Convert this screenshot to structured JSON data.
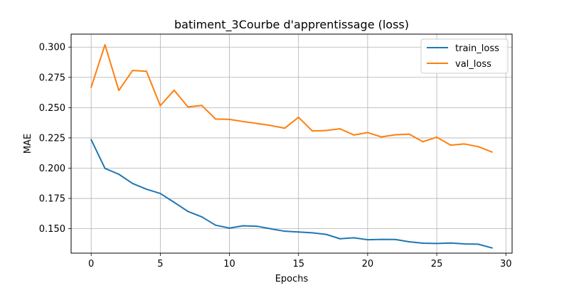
{
  "chart_data": {
    "type": "line",
    "title": "batiment_3Courbe d'apprentissage (loss)",
    "xlabel": "Epochs",
    "ylabel": "MAE",
    "xlim": [
      -1.45,
      30.45
    ],
    "ylim": [
      0.1298,
      0.3107
    ],
    "xticks": [
      0,
      5,
      10,
      15,
      20,
      25,
      30
    ],
    "xtick_labels": [
      "0",
      "5",
      "10",
      "15",
      "20",
      "25",
      "30"
    ],
    "yticks": [
      0.15,
      0.175,
      0.2,
      0.225,
      0.25,
      0.275,
      0.3
    ],
    "ytick_labels": [
      "0.150",
      "0.175",
      "0.200",
      "0.225",
      "0.250",
      "0.275",
      "0.300"
    ],
    "grid": true,
    "legend_position": "top-right",
    "x": [
      0,
      1,
      2,
      3,
      4,
      5,
      6,
      7,
      8,
      9,
      10,
      11,
      12,
      13,
      14,
      15,
      16,
      17,
      18,
      19,
      20,
      21,
      22,
      23,
      24,
      25,
      26,
      27,
      28,
      29
    ],
    "series": [
      {
        "name": "train_loss",
        "color": "#1f77b4",
        "values": [
          0.2235,
          0.1998,
          0.195,
          0.1873,
          0.1826,
          0.1791,
          0.1718,
          0.1643,
          0.1598,
          0.1529,
          0.1505,
          0.1524,
          0.152,
          0.1499,
          0.1479,
          0.1473,
          0.1466,
          0.1453,
          0.1417,
          0.1425,
          0.1409,
          0.1412,
          0.1411,
          0.1392,
          0.138,
          0.1378,
          0.1382,
          0.1374,
          0.1372,
          0.1341
        ]
      },
      {
        "name": "val_loss",
        "color": "#ff7f0e",
        "values": [
          0.2668,
          0.3019,
          0.2642,
          0.2807,
          0.28,
          0.2516,
          0.2644,
          0.2506,
          0.2518,
          0.2406,
          0.2403,
          0.2385,
          0.2369,
          0.2352,
          0.233,
          0.242,
          0.2307,
          0.2311,
          0.2325,
          0.2274,
          0.2294,
          0.2258,
          0.2276,
          0.2281,
          0.2218,
          0.2256,
          0.219,
          0.22,
          0.2178,
          0.2133
        ]
      }
    ]
  }
}
